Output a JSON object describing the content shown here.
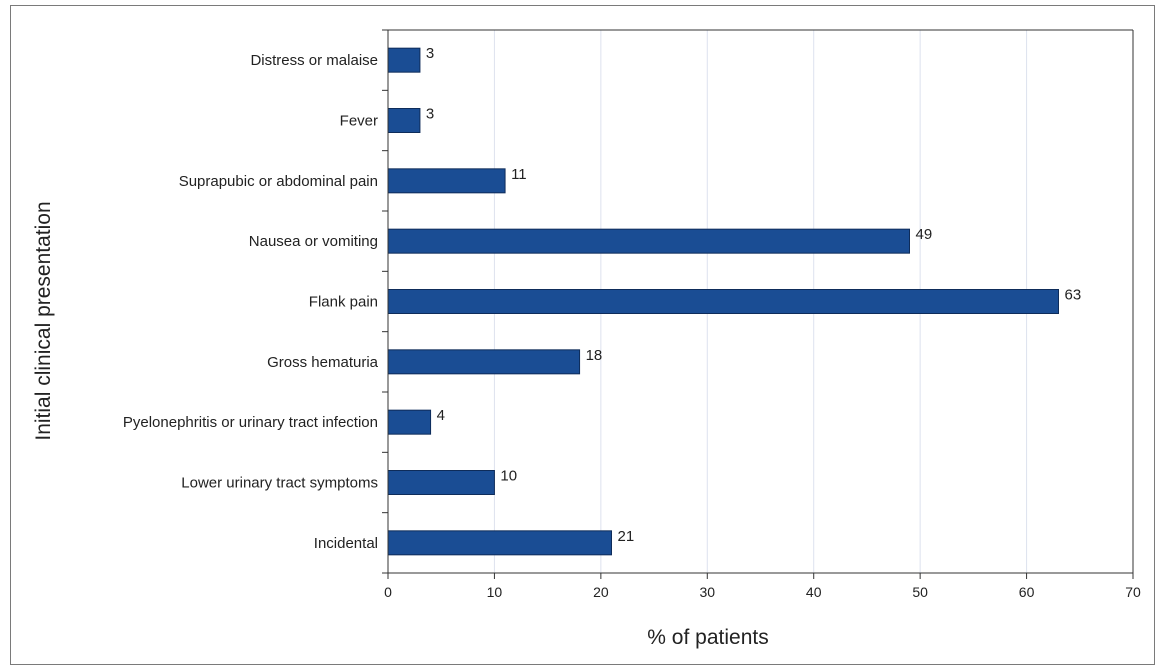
{
  "chart_data": {
    "type": "bar",
    "orientation": "horizontal",
    "title": "",
    "categories": [
      "Distress or malaise",
      "Fever",
      "Suprapubic or abdominal pain",
      "Nausea or vomiting",
      "Flank pain",
      "Gross hematuria",
      "Pyelonephritis or urinary tract infection",
      "Lower urinary tract symptoms",
      "Incidental"
    ],
    "values": [
      3,
      3,
      11,
      49,
      63,
      18,
      4,
      10,
      21
    ],
    "data_labels": [
      "3",
      "3",
      "11",
      "49",
      "63",
      "18",
      "4",
      "10",
      "21"
    ],
    "xlabel": "% of patients",
    "ylabel": "Initial clinical presentation",
    "xlim": [
      0,
      70
    ],
    "xticks": [
      "0",
      "10",
      "20",
      "30",
      "40",
      "50",
      "60",
      "70"
    ],
    "grid": "vertical",
    "bar_color": "#1a4d94",
    "grid_color": "#dde2ee"
  }
}
